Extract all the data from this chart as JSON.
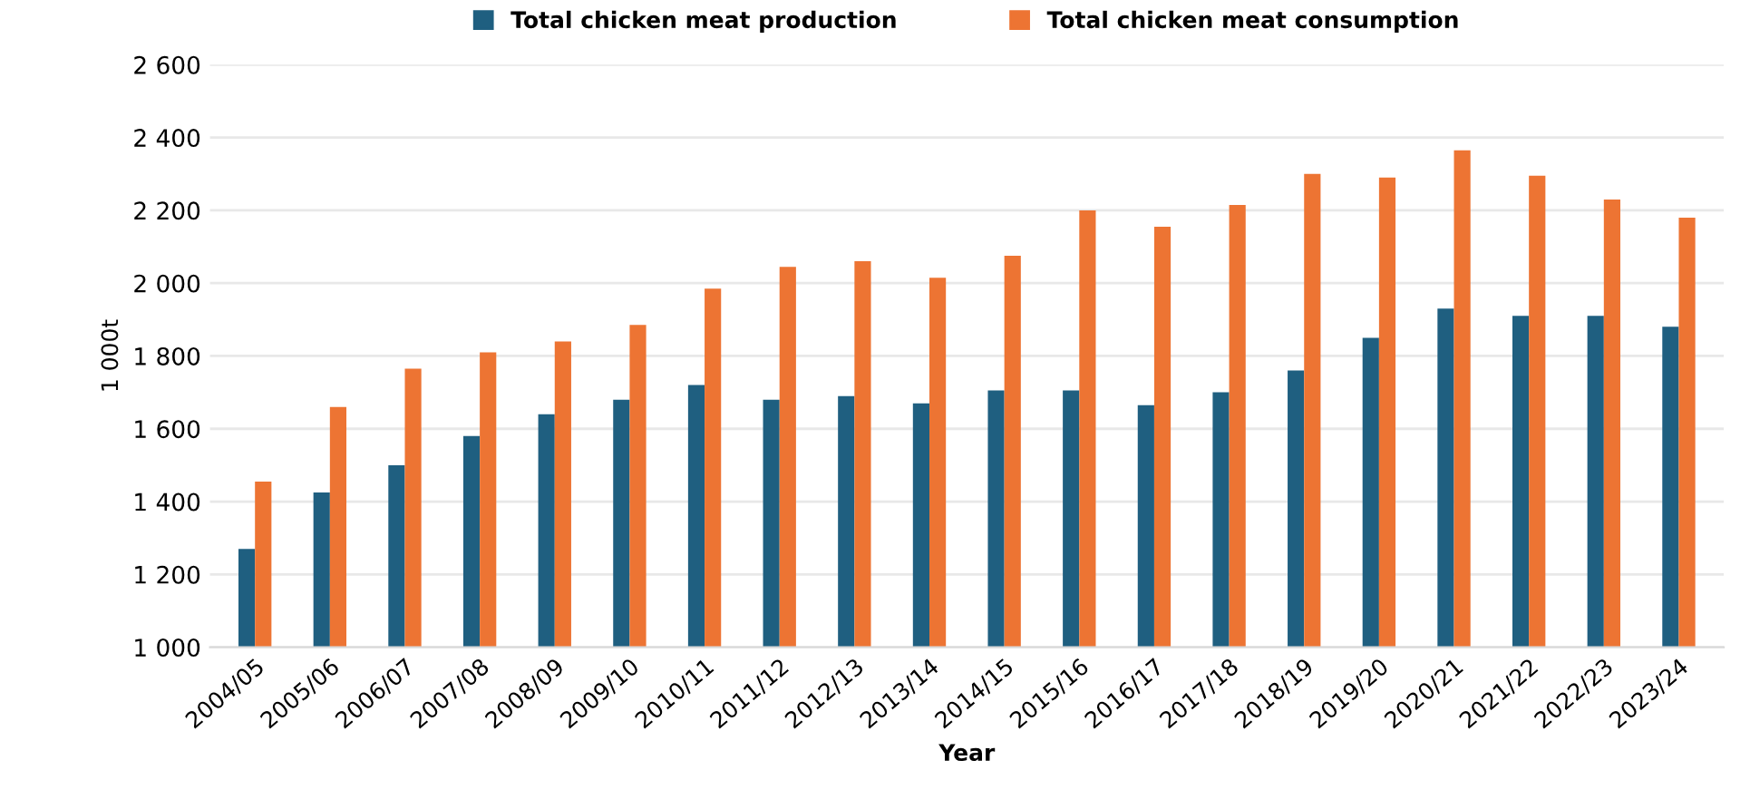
{
  "chart_data": {
    "type": "bar",
    "xlabel": "Year",
    "ylabel": "1 000t",
    "categories": [
      "2004/05",
      "2005/06",
      "2006/07",
      "2007/08",
      "2008/09",
      "2009/10",
      "2010/11",
      "2011/12",
      "2012/13",
      "2013/14",
      "2014/15",
      "2015/16",
      "2016/17",
      "2017/18",
      "2018/19",
      "2019/20",
      "2020/21",
      "2021/22",
      "2022/23",
      "2023/24"
    ],
    "series": [
      {
        "name": "Total chicken meat production",
        "color": "#1f5f80",
        "values": [
          1270,
          1425,
          1500,
          1580,
          1640,
          1680,
          1720,
          1680,
          1690,
          1670,
          1705,
          1705,
          1665,
          1700,
          1760,
          1850,
          1930,
          1910,
          1910,
          1880
        ]
      },
      {
        "name": "Total chicken meat consumption",
        "color": "#ed7433",
        "values": [
          1455,
          1660,
          1765,
          1810,
          1840,
          1885,
          1985,
          2045,
          2060,
          2015,
          2075,
          2200,
          2155,
          2215,
          2300,
          2290,
          2365,
          2295,
          2230,
          2180
        ]
      }
    ],
    "ylim": [
      1000,
      2600
    ],
    "yticks": [
      {
        "value": 1000,
        "label": "1 000"
      },
      {
        "value": 1200,
        "label": "1 200"
      },
      {
        "value": 1400,
        "label": "1 400"
      },
      {
        "value": 1600,
        "label": "1 600"
      },
      {
        "value": 1800,
        "label": "1 800"
      },
      {
        "value": 2000,
        "label": "2 000"
      },
      {
        "value": 2200,
        "label": "2 200"
      },
      {
        "value": 2400,
        "label": "2 400"
      },
      {
        "value": 2600,
        "label": "2 600"
      }
    ],
    "grid": "y",
    "legend": "top"
  }
}
